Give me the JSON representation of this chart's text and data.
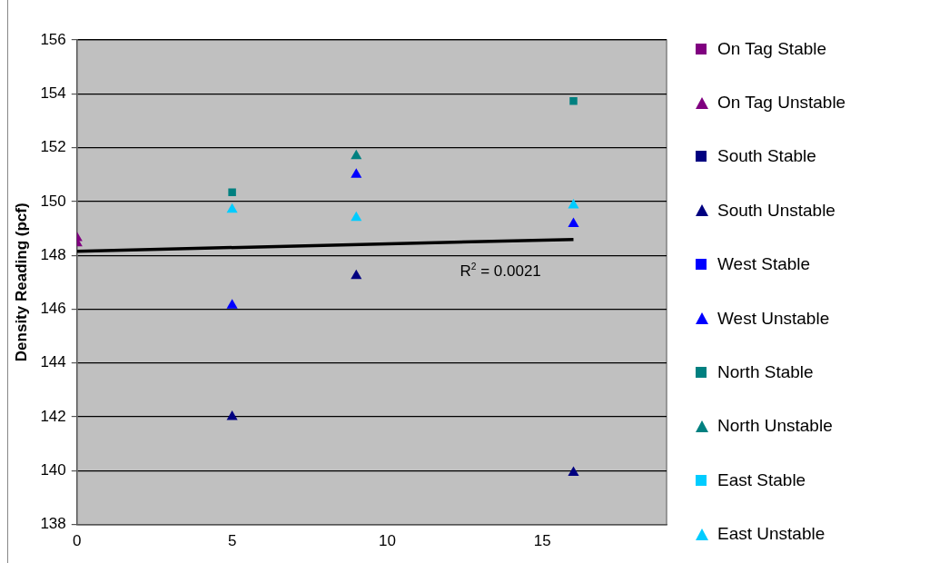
{
  "chart_data": {
    "type": "scatter",
    "ylabel": "Density Reading (pcf)",
    "xlim": [
      0,
      19
    ],
    "xticks": [
      0,
      5,
      10,
      15
    ],
    "ylim": [
      138,
      156
    ],
    "yticks": [
      138,
      140,
      142,
      144,
      146,
      148,
      150,
      152,
      154,
      156
    ],
    "grid": "y",
    "legend": "right",
    "annotations": [
      "R$^{2}$ = 0.0021"
    ],
    "series": [
      {
        "name": "On Tag Stable",
        "color": "#800080",
        "marker": "square"
      },
      {
        "name": "On Tag Unstable",
        "color": "#800080",
        "marker": "triangle",
        "x": [
          0,
          0
        ],
        "values": [
          148.65,
          148.45
        ]
      },
      {
        "name": "South Stable",
        "color": "#000080",
        "marker": "square"
      },
      {
        "name": "South Unstable",
        "color": "#000080",
        "marker": "triangle",
        "x": [
          5,
          9,
          16
        ],
        "values": [
          142.0,
          147.24,
          139.93
        ]
      },
      {
        "name": "West Stable",
        "color": "#0000ff",
        "marker": "square"
      },
      {
        "name": "West Unstable",
        "color": "#0000ff",
        "marker": "triangle",
        "x": [
          5,
          9,
          16
        ],
        "values": [
          146.14,
          151.0,
          149.17
        ]
      },
      {
        "name": "North Stable",
        "color": "#008080",
        "marker": "square",
        "x": [
          5,
          16
        ],
        "values": [
          150.34,
          153.73
        ]
      },
      {
        "name": "North Unstable",
        "color": "#008080",
        "marker": "triangle",
        "x": [
          9
        ],
        "values": [
          151.69
        ]
      },
      {
        "name": "East Stable",
        "color": "#00ccff",
        "marker": "square"
      },
      {
        "name": "East Unstable",
        "color": "#00ccff",
        "marker": "triangle",
        "x": [
          5,
          9,
          16
        ],
        "values": [
          149.7,
          149.4,
          149.86
        ]
      },
      {
        "type": "line",
        "color": "#000000",
        "marker": "none",
        "x": [
          0,
          16
        ],
        "values": [
          148.15,
          148.59
        ]
      }
    ]
  }
}
